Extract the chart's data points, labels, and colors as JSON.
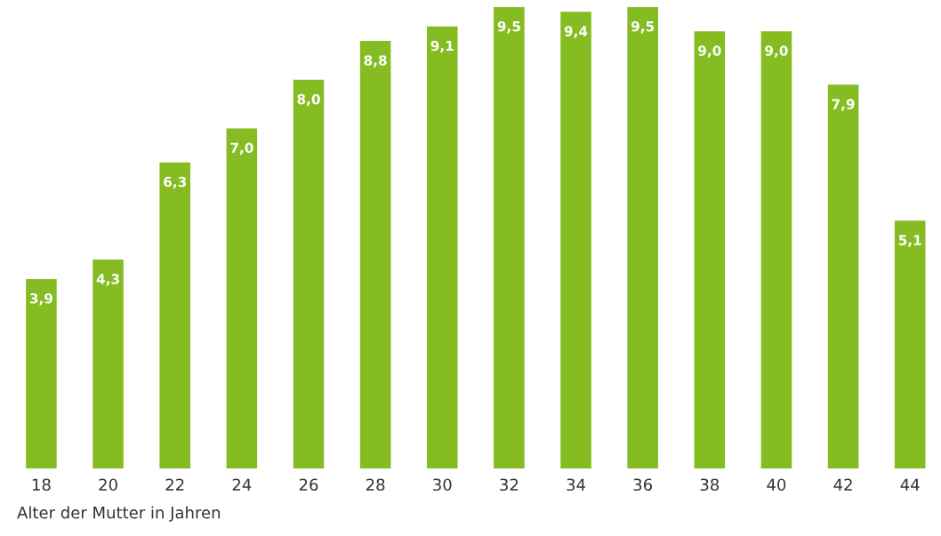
{
  "chart_data": {
    "type": "bar",
    "xlabel": "Alter der Mutter in Jahren",
    "categories": [
      "18",
      "20",
      "22",
      "24",
      "26",
      "28",
      "30",
      "32",
      "34",
      "36",
      "38",
      "40",
      "42",
      "44"
    ],
    "values": [
      3.9,
      4.3,
      6.3,
      7.0,
      8.0,
      8.8,
      9.1,
      9.5,
      9.4,
      9.5,
      9.0,
      9.0,
      7.9,
      5.1
    ],
    "value_labels": [
      "3,9",
      "4,3",
      "6,3",
      "7,0",
      "8,0",
      "8,8",
      "9,1",
      "9,5",
      "9,4",
      "9,5",
      "9,0",
      "9,0",
      "7,9",
      "5,1"
    ],
    "color": "#84bc22",
    "grid": false,
    "legend": false
  }
}
